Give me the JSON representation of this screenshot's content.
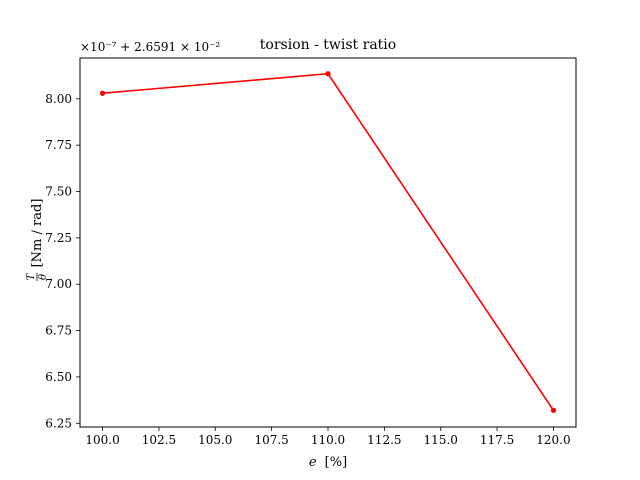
{
  "chart_data": {
    "type": "line",
    "title": "torsion - twist ratio",
    "xlabel_var": "e",
    "xlabel_unit": "[%]",
    "ylabel_num": "T",
    "ylabel_den": "θ",
    "ylabel_unit": "[Nm / rad]",
    "offset_text": "×10⁻⁷ + 2.6591 × 10⁻²",
    "x": [
      100.0,
      110.0,
      120.0
    ],
    "series": [
      {
        "values": [
          8.03,
          8.135,
          6.32
        ],
        "color": "#ff0000"
      }
    ],
    "xlim": [
      99.0,
      121.0
    ],
    "ylim": [
      6.23,
      8.22
    ],
    "xticks": [
      100.0,
      102.5,
      105.0,
      107.5,
      110.0,
      112.5,
      115.0,
      117.5,
      120.0
    ],
    "xtick_labels": [
      "100.0",
      "102.5",
      "105.0",
      "107.5",
      "110.0",
      "112.5",
      "115.0",
      "117.5",
      "120.0"
    ],
    "yticks": [
      6.25,
      6.5,
      6.75,
      7.0,
      7.25,
      7.5,
      7.75,
      8.0
    ],
    "ytick_labels": [
      "6.25",
      "6.50",
      "6.75",
      "7.00",
      "7.25",
      "7.50",
      "7.75",
      "8.00"
    ],
    "grid": false,
    "marker": "circle"
  }
}
